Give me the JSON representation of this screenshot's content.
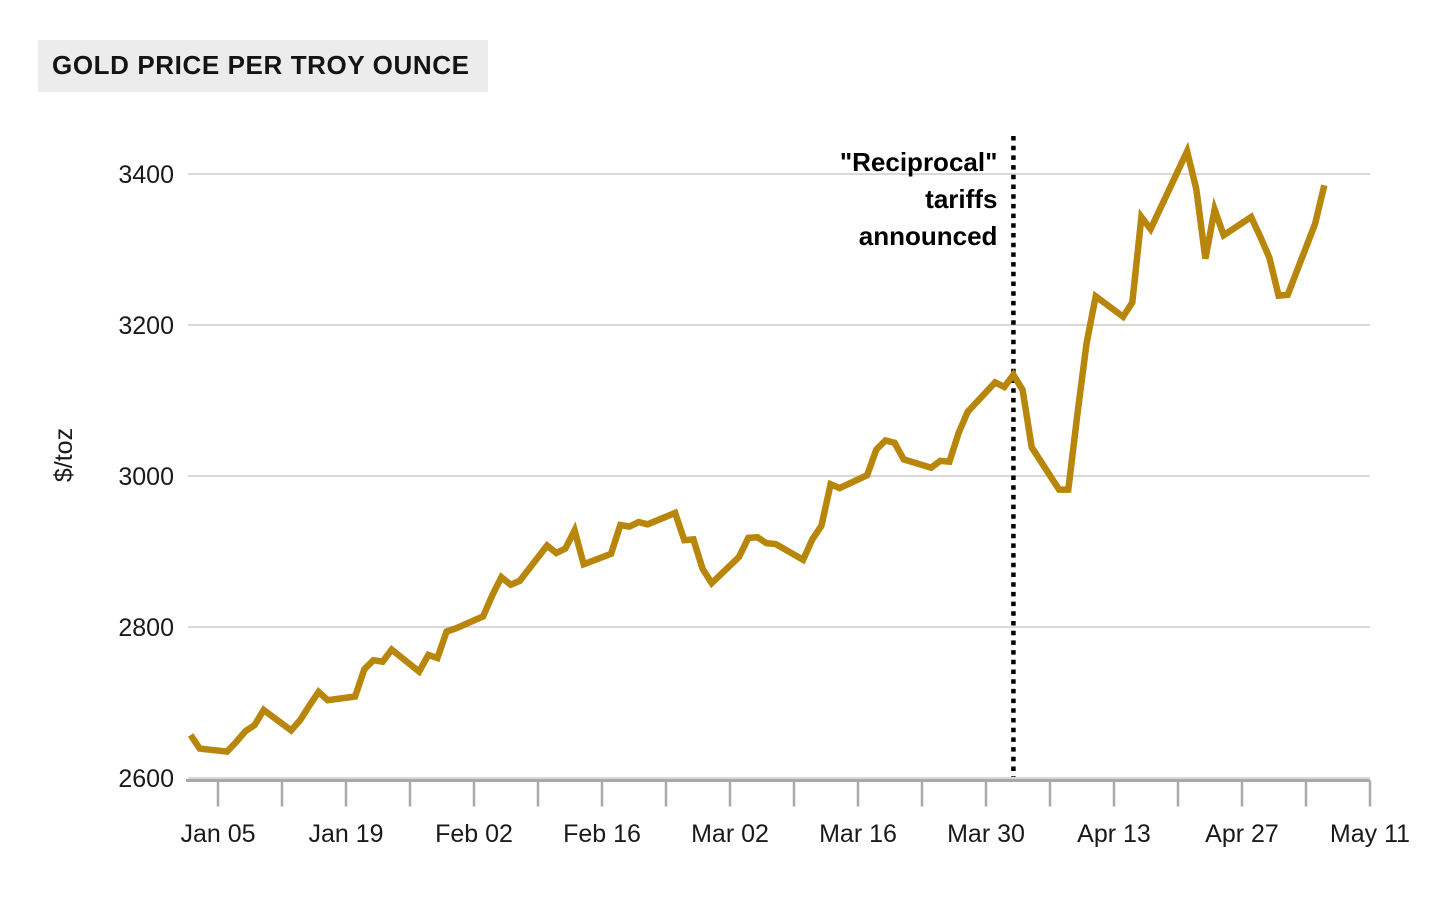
{
  "header": {
    "title": "GOLD PRICE PER TROY OUNCE",
    "chip_background": "#ececec"
  },
  "chart_data": {
    "type": "line",
    "title": "GOLD PRICE PER TROY OUNCE",
    "xlabel": "",
    "ylabel": "$/toz",
    "ylim": [
      2600,
      3460
    ],
    "y_ticks": [
      2600,
      2800,
      3000,
      3200,
      3400
    ],
    "grid": "horizontal",
    "legend": "none",
    "line_color": "#B8860B",
    "grid_color": "#d9d9d9",
    "axis_color": "#a9a9a9",
    "text_color": "#1a1a1a",
    "x_ticks": [
      {
        "date": "Jan 05",
        "label": "Jan 05"
      },
      {
        "date": "Jan 12",
        "label": ""
      },
      {
        "date": "Jan 19",
        "label": "Jan 19"
      },
      {
        "date": "Jan 26",
        "label": ""
      },
      {
        "date": "Feb 02",
        "label": "Feb 02"
      },
      {
        "date": "Feb 09",
        "label": ""
      },
      {
        "date": "Feb 16",
        "label": "Feb 16"
      },
      {
        "date": "Feb 23",
        "label": ""
      },
      {
        "date": "Mar 02",
        "label": "Mar 02"
      },
      {
        "date": "Mar 09",
        "label": ""
      },
      {
        "date": "Mar 16",
        "label": "Mar 16"
      },
      {
        "date": "Mar 23",
        "label": ""
      },
      {
        "date": "Mar 30",
        "label": "Mar 30"
      },
      {
        "date": "Apr 06",
        "label": ""
      },
      {
        "date": "Apr 13",
        "label": "Apr 13"
      },
      {
        "date": "Apr 20",
        "label": ""
      },
      {
        "date": "Apr 27",
        "label": "Apr 27"
      },
      {
        "date": "May 04",
        "label": ""
      },
      {
        "date": "May 11",
        "label": "May 11"
      }
    ],
    "annotation": {
      "lines": [
        "\"Reciprocal\"",
        "tariffs",
        "announced"
      ],
      "date": "Apr 02",
      "style": "dotted-vertical-line",
      "color": "#000000"
    },
    "series": [
      {
        "name": "Gold price ($/toz)",
        "points": [
          [
            "Jan 02",
            2657
          ],
          [
            "Jan 03",
            2639
          ],
          [
            "Jan 06",
            2635
          ],
          [
            "Jan 07",
            2648
          ],
          [
            "Jan 08",
            2662
          ],
          [
            "Jan 09",
            2670
          ],
          [
            "Jan 10",
            2690
          ],
          [
            "Jan 13",
            2663
          ],
          [
            "Jan 14",
            2677
          ],
          [
            "Jan 15",
            2696
          ],
          [
            "Jan 16",
            2714
          ],
          [
            "Jan 17",
            2703
          ],
          [
            "Jan 20",
            2708
          ],
          [
            "Jan 21",
            2744
          ],
          [
            "Jan 22",
            2756
          ],
          [
            "Jan 23",
            2754
          ],
          [
            "Jan 24",
            2770
          ],
          [
            "Jan 27",
            2741
          ],
          [
            "Jan 28",
            2763
          ],
          [
            "Jan 29",
            2759
          ],
          [
            "Jan 30",
            2794
          ],
          [
            "Jan 31",
            2798
          ],
          [
            "Feb 03",
            2814
          ],
          [
            "Feb 04",
            2842
          ],
          [
            "Feb 05",
            2866
          ],
          [
            "Feb 06",
            2856
          ],
          [
            "Feb 07",
            2861
          ],
          [
            "Feb 10",
            2908
          ],
          [
            "Feb 11",
            2898
          ],
          [
            "Feb 12",
            2904
          ],
          [
            "Feb 13",
            2928
          ],
          [
            "Feb 14",
            2883
          ],
          [
            "Feb 17",
            2897
          ],
          [
            "Feb 18",
            2935
          ],
          [
            "Feb 19",
            2933
          ],
          [
            "Feb 20",
            2939
          ],
          [
            "Feb 21",
            2936
          ],
          [
            "Feb 24",
            2951
          ],
          [
            "Feb 25",
            2915
          ],
          [
            "Feb 26",
            2916
          ],
          [
            "Feb 27",
            2877
          ],
          [
            "Feb 28",
            2858
          ],
          [
            "Mar 03",
            2893
          ],
          [
            "Mar 04",
            2918
          ],
          [
            "Mar 05",
            2919
          ],
          [
            "Mar 06",
            2911
          ],
          [
            "Mar 07",
            2910
          ],
          [
            "Mar 10",
            2889
          ],
          [
            "Mar 11",
            2916
          ],
          [
            "Mar 12",
            2934
          ],
          [
            "Mar 13",
            2989
          ],
          [
            "Mar 14",
            2984
          ],
          [
            "Mar 17",
            3001
          ],
          [
            "Mar 18",
            3035
          ],
          [
            "Mar 19",
            3047
          ],
          [
            "Mar 20",
            3044
          ],
          [
            "Mar 21",
            3022
          ],
          [
            "Mar 24",
            3011
          ],
          [
            "Mar 25",
            3020
          ],
          [
            "Mar 26",
            3019
          ],
          [
            "Mar 27",
            3057
          ],
          [
            "Mar 28",
            3085
          ],
          [
            "Mar 31",
            3124
          ],
          [
            "Apr 01",
            3118
          ],
          [
            "Apr 02",
            3134
          ],
          [
            "Apr 03",
            3114
          ],
          [
            "Apr 04",
            3038
          ],
          [
            "Apr 07",
            2982
          ],
          [
            "Apr 08",
            2982
          ],
          [
            "Apr 09",
            3082
          ],
          [
            "Apr 10",
            3176
          ],
          [
            "Apr 11",
            3238
          ],
          [
            "Apr 14",
            3211
          ],
          [
            "Apr 15",
            3230
          ],
          [
            "Apr 16",
            3343
          ],
          [
            "Apr 17",
            3327
          ],
          [
            "Apr 21",
            3430
          ],
          [
            "Apr 22",
            3380
          ],
          [
            "Apr 23",
            3288
          ],
          [
            "Apr 24",
            3353
          ],
          [
            "Apr 25",
            3319
          ],
          [
            "Apr 28",
            3343
          ],
          [
            "Apr 29",
            3317
          ],
          [
            "Apr 30",
            3289
          ],
          [
            "May 01",
            3239
          ],
          [
            "May 02",
            3240
          ],
          [
            "May 05",
            3334
          ],
          [
            "May 06",
            3385
          ]
        ]
      }
    ]
  }
}
